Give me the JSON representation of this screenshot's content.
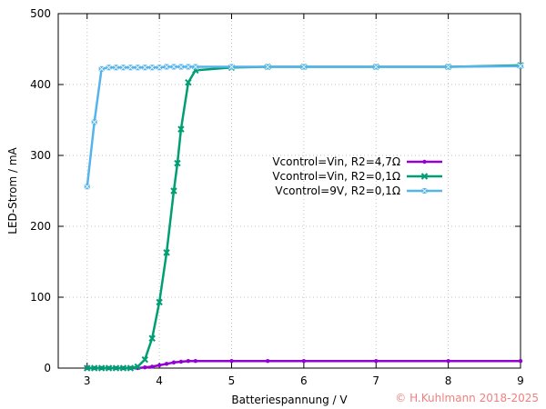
{
  "chart_data": {
    "type": "line",
    "xlabel": "Batteriespannung / V",
    "ylabel": "LED-Strom / mA",
    "xlim": [
      2.6,
      9
    ],
    "ylim": [
      0,
      500
    ],
    "xticks": [
      3,
      4,
      5,
      6,
      7,
      8,
      9
    ],
    "yticks": [
      0,
      100,
      200,
      300,
      400,
      500
    ],
    "grid": true,
    "legend_position": "center-right",
    "copyright": "© H.Kuhlmann 2018-2025",
    "series": [
      {
        "name": "Vcontrol=Vin, R2=4,7Ω",
        "color": "#9400d3",
        "marker": "circle",
        "x": [
          3.0,
          3.1,
          3.2,
          3.3,
          3.4,
          3.5,
          3.6,
          3.7,
          3.8,
          3.9,
          4.0,
          4.1,
          4.2,
          4.3,
          4.4,
          4.5,
          5.0,
          5.5,
          6.0,
          7.0,
          8.0,
          9.0
        ],
        "y": [
          0,
          0,
          0,
          0,
          0,
          0,
          0,
          0,
          1,
          2,
          4,
          6,
          8,
          9,
          10,
          10,
          10,
          10,
          10,
          10,
          10,
          10
        ]
      },
      {
        "name": "Vcontrol=Vin, R2=0,1Ω",
        "color": "#009e73",
        "marker": "x",
        "x": [
          3.0,
          3.1,
          3.2,
          3.3,
          3.4,
          3.5,
          3.6,
          3.7,
          3.8,
          3.9,
          4.0,
          4.1,
          4.2,
          4.25,
          4.3,
          4.4,
          4.5,
          5.0,
          5.5,
          6.0,
          7.0,
          8.0,
          9.0
        ],
        "y": [
          0,
          0,
          0,
          0,
          0,
          0,
          0,
          2,
          12,
          42,
          93,
          163,
          250,
          289,
          337,
          403,
          420,
          424,
          425,
          425,
          425,
          425,
          427
        ]
      },
      {
        "name": "Vcontrol=9V, R2=0,1Ω",
        "color": "#56b4e9",
        "marker": "square",
        "x": [
          3.0,
          3.1,
          3.2,
          3.3,
          3.4,
          3.5,
          3.6,
          3.7,
          3.8,
          3.9,
          4.0,
          4.1,
          4.2,
          4.3,
          4.4,
          4.5,
          5.0,
          5.5,
          6.0,
          7.0,
          8.0,
          9.0
        ],
        "y": [
          256,
          347,
          422,
          424,
          424,
          424,
          424,
          424,
          424,
          424,
          424,
          425,
          425,
          425,
          425,
          425,
          425,
          425,
          425,
          425,
          425,
          426
        ]
      }
    ]
  }
}
